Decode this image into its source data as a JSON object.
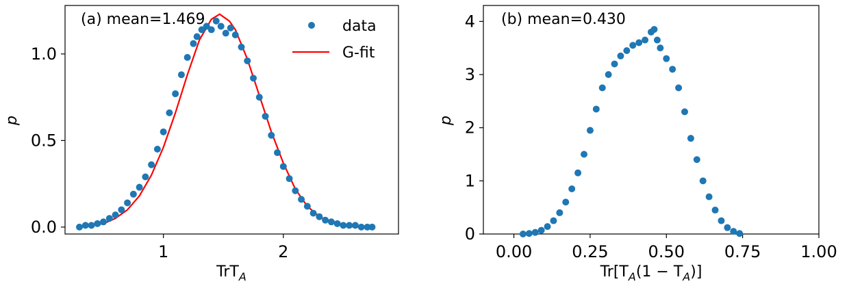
{
  "chart_data": [
    {
      "panel": "a",
      "type": "scatter",
      "annotation": "(a)  mean=1.469",
      "xlabel": "TrT",
      "xlabel_sub": "A",
      "ylabel": "p",
      "xlim": [
        0.18,
        2.96
      ],
      "ylim": [
        -0.04,
        1.28
      ],
      "xticks": [
        1,
        2
      ],
      "xtick_labels": [
        "1",
        "2"
      ],
      "yticks": [
        0.0,
        0.5,
        1.0
      ],
      "ytick_labels": [
        "0.0",
        "0.5",
        "1.0"
      ],
      "legend": {
        "position": "upper right",
        "entries": [
          "data",
          "G-fit"
        ]
      },
      "colors": {
        "data": "#1f77b4",
        "fit": "#ff0000"
      },
      "series": [
        {
          "name": "data",
          "kind": "scatter",
          "x": [
            0.3,
            0.35,
            0.4,
            0.45,
            0.5,
            0.55,
            0.6,
            0.65,
            0.7,
            0.75,
            0.8,
            0.85,
            0.9,
            0.95,
            1.0,
            1.05,
            1.1,
            1.15,
            1.2,
            1.25,
            1.28,
            1.32,
            1.36,
            1.4,
            1.44,
            1.48,
            1.52,
            1.56,
            1.6,
            1.65,
            1.7,
            1.75,
            1.8,
            1.85,
            1.9,
            1.95,
            2.0,
            2.05,
            2.1,
            2.15,
            2.2,
            2.25,
            2.3,
            2.35,
            2.4,
            2.45,
            2.5,
            2.55,
            2.6,
            2.65,
            2.7,
            2.74
          ],
          "y": [
            0.0,
            0.01,
            0.01,
            0.02,
            0.03,
            0.05,
            0.07,
            0.1,
            0.14,
            0.19,
            0.23,
            0.29,
            0.36,
            0.45,
            0.55,
            0.66,
            0.77,
            0.88,
            0.98,
            1.06,
            1.1,
            1.14,
            1.16,
            1.14,
            1.19,
            1.16,
            1.12,
            1.15,
            1.11,
            1.04,
            0.96,
            0.86,
            0.75,
            0.64,
            0.53,
            0.43,
            0.35,
            0.28,
            0.21,
            0.16,
            0.12,
            0.08,
            0.06,
            0.04,
            0.03,
            0.02,
            0.01,
            0.01,
            0.01,
            0.0,
            0.0,
            0.0
          ]
        },
        {
          "name": "G-fit",
          "kind": "line",
          "x": [
            0.3,
            0.4,
            0.5,
            0.6,
            0.7,
            0.8,
            0.9,
            1.0,
            1.1,
            1.2,
            1.3,
            1.4,
            1.469,
            1.55,
            1.6,
            1.7,
            1.8,
            1.9,
            2.0,
            2.1,
            2.2,
            2.3,
            2.4,
            2.5,
            2.6,
            2.74
          ],
          "y": [
            0.0,
            0.01,
            0.02,
            0.05,
            0.1,
            0.18,
            0.3,
            0.46,
            0.66,
            0.88,
            1.08,
            1.2,
            1.23,
            1.19,
            1.14,
            0.97,
            0.76,
            0.55,
            0.37,
            0.22,
            0.12,
            0.06,
            0.03,
            0.01,
            0.0,
            0.0
          ]
        }
      ]
    },
    {
      "panel": "b",
      "type": "scatter",
      "annotation": "(b)  mean=0.430",
      "xlabel": "Tr[T",
      "xlabel_sub": "A",
      "xlabel_mid": "(1 − T",
      "xlabel_end": ")]",
      "ylabel": "p",
      "xlim": [
        -0.1,
        1.0
      ],
      "ylim": [
        0,
        4.3
      ],
      "xticks": [
        0.0,
        0.25,
        0.5,
        0.75,
        1.0
      ],
      "xtick_labels": [
        "0.00",
        "0.25",
        "0.50",
        "0.75",
        "1.00"
      ],
      "yticks": [
        0,
        1,
        2,
        3,
        4
      ],
      "ytick_labels": [
        "0",
        "1",
        "2",
        "3",
        "4"
      ],
      "colors": {
        "data": "#1f77b4"
      },
      "series": [
        {
          "name": "data",
          "kind": "scatter",
          "x": [
            0.03,
            0.05,
            0.07,
            0.09,
            0.11,
            0.13,
            0.15,
            0.17,
            0.19,
            0.21,
            0.23,
            0.25,
            0.27,
            0.29,
            0.31,
            0.33,
            0.35,
            0.37,
            0.39,
            0.41,
            0.43,
            0.45,
            0.46,
            0.47,
            0.48,
            0.5,
            0.52,
            0.54,
            0.56,
            0.58,
            0.6,
            0.62,
            0.64,
            0.66,
            0.68,
            0.7,
            0.72,
            0.74
          ],
          "y": [
            0.0,
            0.01,
            0.03,
            0.07,
            0.14,
            0.25,
            0.4,
            0.6,
            0.85,
            1.15,
            1.5,
            1.95,
            2.35,
            2.75,
            3.0,
            3.2,
            3.35,
            3.45,
            3.55,
            3.6,
            3.65,
            3.8,
            3.85,
            3.65,
            3.5,
            3.3,
            3.1,
            2.75,
            2.3,
            1.8,
            1.4,
            1.0,
            0.7,
            0.45,
            0.25,
            0.12,
            0.05,
            0.01
          ]
        }
      ]
    }
  ]
}
